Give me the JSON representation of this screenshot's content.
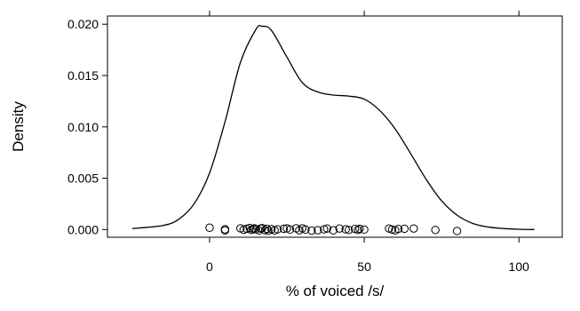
{
  "chart_data": {
    "type": "density",
    "title": "",
    "xlabel": "% of voiced /s/",
    "ylabel": "Density",
    "xlim": [
      -33,
      114
    ],
    "ylim": [
      -0.00075,
      0.0208
    ],
    "x_ticks": [
      0,
      50,
      100
    ],
    "x_tick_labels": [
      "0",
      "50",
      "100"
    ],
    "y_ticks": [
      0.0,
      0.005,
      0.01,
      0.015,
      0.02
    ],
    "y_tick_labels": [
      "0.000",
      "0.005",
      "0.010",
      "0.015",
      "0.020"
    ],
    "grid": false,
    "legend": "none",
    "line_color": "#000000",
    "point_color": "#000000",
    "density_curve": {
      "x": [
        -25,
        -15,
        -10,
        -5,
        0,
        5,
        10,
        15,
        17,
        20,
        25,
        30,
        35,
        40,
        45,
        50,
        55,
        60,
        65,
        70,
        75,
        80,
        85,
        90,
        95,
        100,
        105
      ],
      "y": [
        0.0001,
        0.0004,
        0.001,
        0.0025,
        0.0055,
        0.0105,
        0.0163,
        0.0195,
        0.0198,
        0.0194,
        0.0168,
        0.0143,
        0.0134,
        0.0131,
        0.013,
        0.0127,
        0.0116,
        0.0098,
        0.0074,
        0.0049,
        0.0028,
        0.0014,
        0.0006,
        0.00025,
        0.0001,
        3e-05,
        0.0
      ]
    },
    "rug_points": {
      "x": [
        0,
        5,
        5,
        10,
        11,
        12,
        13,
        13.5,
        14,
        14.5,
        15,
        16,
        16.5,
        17,
        18,
        18.5,
        19,
        20,
        21,
        22,
        24,
        25,
        26,
        28,
        29,
        30,
        31,
        33,
        35,
        37,
        38,
        40,
        42,
        44,
        45,
        47,
        48,
        48.5,
        50,
        58,
        59,
        60,
        61,
        63,
        66,
        73,
        80
      ],
      "y": [
        0.00018,
        -8e-05,
        2e-05,
        0.00012,
        -2e-05,
        8e-05,
        0.00015,
        -4e-05,
        6e-05,
        0.00012,
        2e-05,
        -8e-05,
        0.0001,
        0.00014,
        -6e-05,
        8e-05,
        -0.00012,
        4e-05,
        -8e-05,
        2e-05,
        8e-05,
        0.00012,
        0.0,
        0.00012,
        -6e-05,
        0.00012,
        0.0,
        -0.0001,
        -6e-05,
        2e-05,
        0.0001,
        -8e-05,
        0.0001,
        2e-05,
        -4e-05,
        6e-05,
        -4e-05,
        8e-05,
        0.0,
        0.0001,
        0.0,
        -8e-05,
        6e-05,
        8e-05,
        0.0001,
        -4e-05,
        -0.00014
      ]
    }
  }
}
